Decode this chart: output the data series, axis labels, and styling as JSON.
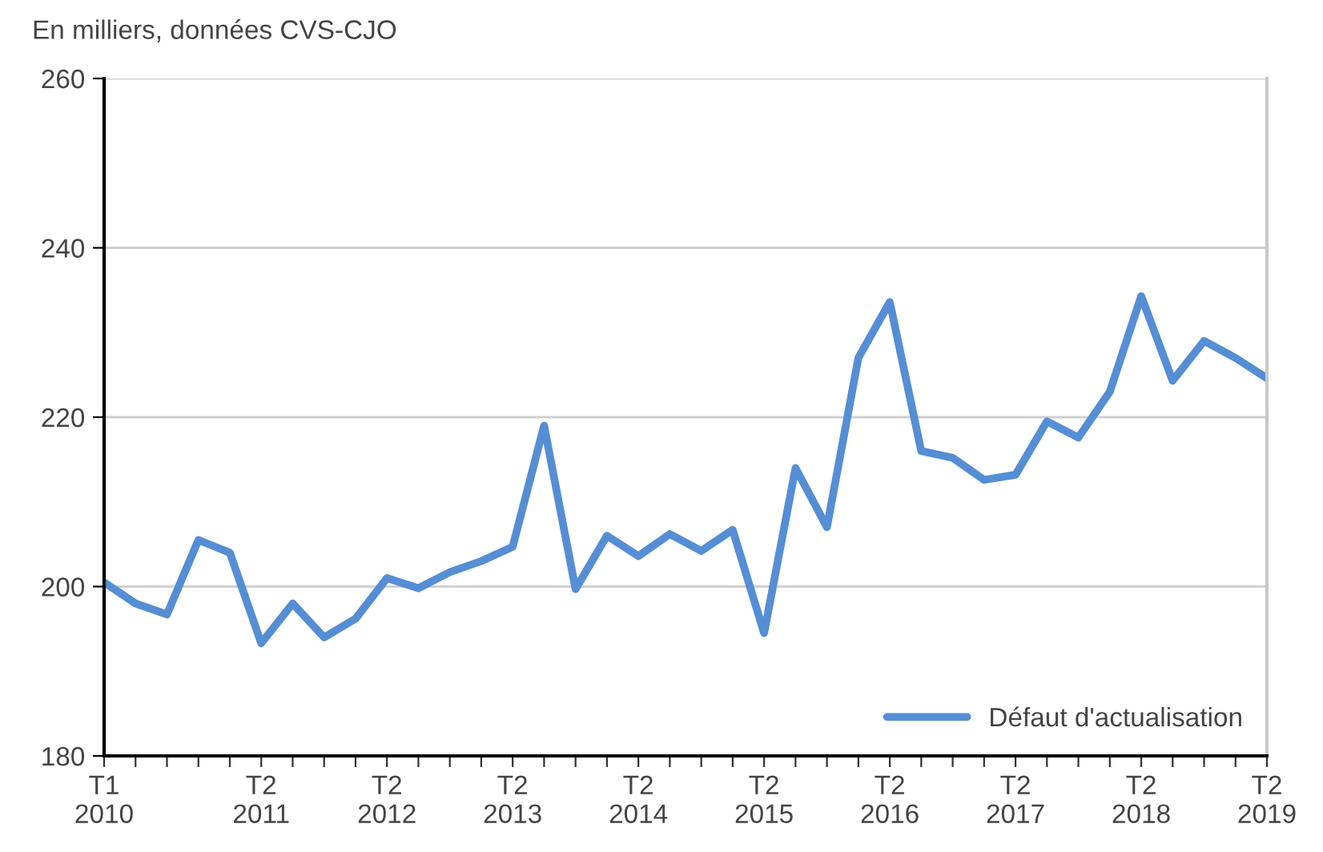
{
  "chart_data": {
    "type": "line",
    "ylabel": "En milliers, données CVS-CJO",
    "categories": [
      "T1\n2010",
      null,
      null,
      null,
      null,
      "T2\n2011",
      null,
      null,
      null,
      "T2\n2012",
      null,
      null,
      null,
      "T2\n2013",
      null,
      null,
      null,
      "T2\n2014",
      null,
      null,
      null,
      "T2\n2015",
      null,
      null,
      null,
      "T2\n2016",
      null,
      null,
      null,
      "T2\n2017",
      null,
      null,
      null,
      "T2\n2018",
      null,
      null,
      null,
      "T2\n2019"
    ],
    "series": [
      {
        "name": "Défaut d'actualisation",
        "color": "#558ed5",
        "values": [
          200.5,
          198,
          196.7,
          205.5,
          204,
          193.3,
          198,
          194,
          196.2,
          201,
          199.8,
          201.7,
          203,
          204.7,
          219,
          199.7,
          206,
          203.6,
          206.2,
          204.2,
          206.7,
          194.5,
          214,
          207,
          227,
          233.6,
          216,
          215.2,
          212.6,
          213.2,
          219.5,
          217.6,
          223,
          234.3,
          224.3,
          229,
          227,
          224.6
        ]
      }
    ],
    "ylim": [
      180,
      260
    ],
    "yticks": [
      180,
      200,
      220,
      240,
      260
    ],
    "grid": "y",
    "legend": "bottom right",
    "marker": "none",
    "line_style": "solid"
  }
}
